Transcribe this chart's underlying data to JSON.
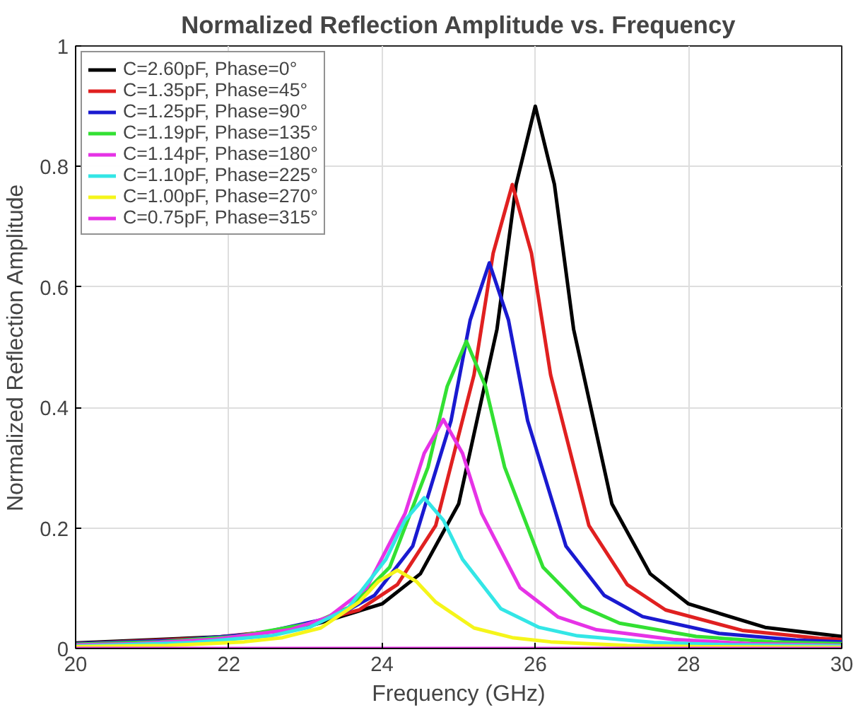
{
  "chart_data": {
    "type": "line",
    "title": "Normalized Reflection Amplitude vs. Frequency",
    "xlabel": "Frequency (GHz)",
    "ylabel": "Normalized Reflection Amplitude",
    "xlim": [
      20,
      30
    ],
    "ylim": [
      0,
      1
    ],
    "xticks": [
      20,
      22,
      24,
      26,
      28,
      30
    ],
    "yticks": [
      0,
      0.2,
      0.4,
      0.6,
      0.8,
      1
    ],
    "grid": true,
    "legend": "top left",
    "marker": "none",
    "line_style": "solid",
    "series": [
      {
        "name": "C=2.60pF, Phase=0°",
        "color": "#000000",
        "x": [
          20,
          22,
          23,
          24,
          24.5,
          25,
          25.5,
          25.75,
          26,
          26.25,
          26.5,
          27,
          27.5,
          28,
          29,
          30
        ],
        "values": [
          0.009,
          0.02,
          0.035,
          0.074,
          0.124,
          0.24,
          0.53,
          0.77,
          0.9,
          0.77,
          0.53,
          0.24,
          0.124,
          0.074,
          0.035,
          0.02
        ]
      },
      {
        "name": "C=1.35pF, Phase=45°",
        "color": "#e02020",
        "x": [
          20,
          21.7,
          22.7,
          23.7,
          24.2,
          24.7,
          25.2,
          25.45,
          25.7,
          25.95,
          26.2,
          26.7,
          27.2,
          27.7,
          28.7,
          29.7,
          30
        ],
        "values": [
          0.008,
          0.017,
          0.03,
          0.064,
          0.106,
          0.204,
          0.454,
          0.656,
          0.77,
          0.656,
          0.454,
          0.204,
          0.106,
          0.064,
          0.03,
          0.017,
          0.015
        ]
      },
      {
        "name": "C=1.25pF, Phase=90°",
        "color": "#1a1ad0",
        "x": [
          20,
          21.4,
          22.4,
          23.4,
          23.9,
          24.4,
          24.9,
          25.15,
          25.4,
          25.65,
          25.9,
          26.4,
          26.9,
          27.4,
          28.4,
          29.4,
          30
        ],
        "values": [
          0.008,
          0.014,
          0.025,
          0.053,
          0.088,
          0.17,
          0.378,
          0.545,
          0.64,
          0.545,
          0.378,
          0.17,
          0.088,
          0.053,
          0.025,
          0.014,
          0.011
        ]
      },
      {
        "name": "C=1.19pF, Phase=135°",
        "color": "#33e033",
        "x": [
          20,
          21.1,
          22.1,
          23.1,
          23.6,
          24.1,
          24.6,
          24.85,
          25.1,
          25.35,
          25.6,
          26.1,
          26.6,
          27.1,
          28.1,
          29.1,
          30
        ],
        "values": [
          0.007,
          0.011,
          0.02,
          0.042,
          0.07,
          0.135,
          0.301,
          0.435,
          0.51,
          0.435,
          0.301,
          0.135,
          0.07,
          0.042,
          0.02,
          0.011,
          0.008
        ]
      },
      {
        "name": "C=1.14pF, Phase=180°",
        "color": "#e633e6",
        "x": [
          20,
          20.8,
          21.8,
          22.8,
          23.3,
          23.8,
          24.3,
          24.55,
          24.8,
          25.05,
          25.3,
          25.8,
          26.3,
          26.8,
          27.8,
          28.8,
          30
        ],
        "values": [
          0.006,
          0.008,
          0.015,
          0.031,
          0.052,
          0.101,
          0.224,
          0.324,
          0.38,
          0.324,
          0.224,
          0.101,
          0.052,
          0.031,
          0.015,
          0.008,
          0.005
        ]
      },
      {
        "name": "C=1.10pF, Phase=225°",
        "color": "#33e6e6",
        "x": [
          20,
          20.55,
          21.55,
          22.55,
          23.05,
          23.55,
          24.05,
          24.3,
          24.55,
          24.8,
          25.05,
          25.55,
          26.05,
          26.55,
          27.55,
          28.55,
          30
        ],
        "values": [
          0.004,
          0.006,
          0.01,
          0.021,
          0.035,
          0.066,
          0.148,
          0.213,
          0.25,
          0.213,
          0.148,
          0.066,
          0.035,
          0.021,
          0.01,
          0.006,
          0.004
        ]
      },
      {
        "name": "C=1.00pF, Phase=270°",
        "color": "#f5f51a",
        "x": [
          20,
          21.2,
          22.2,
          22.7,
          23.2,
          23.7,
          23.95,
          24.2,
          24.45,
          24.7,
          25.2,
          25.7,
          26.2,
          27.2,
          28.2,
          30
        ],
        "values": [
          0.003,
          0.005,
          0.011,
          0.018,
          0.034,
          0.077,
          0.111,
          0.13,
          0.111,
          0.077,
          0.034,
          0.018,
          0.011,
          0.005,
          0.003,
          0.002
        ]
      },
      {
        "name": "C=0.75pF, Phase=315°",
        "color": "#e633e6",
        "x": [
          20,
          30
        ],
        "values": [
          0,
          0
        ]
      }
    ]
  }
}
